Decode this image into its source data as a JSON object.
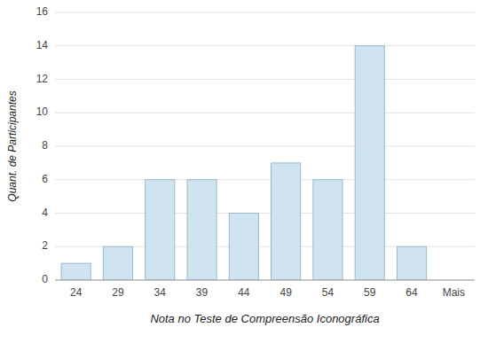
{
  "chart_data": {
    "type": "bar",
    "xlabel": "Nota no Teste de Compreensão Iconográfica",
    "ylabel": "Quant. de Participantes",
    "categories": [
      "24",
      "29",
      "34",
      "39",
      "44",
      "49",
      "54",
      "59",
      "64",
      "Mais"
    ],
    "values": [
      1,
      2,
      6,
      6,
      4,
      7,
      6,
      14,
      2,
      0
    ],
    "color": "#cfe3f0",
    "ylim": [
      0,
      16
    ],
    "yticks": [
      0,
      2,
      4,
      6,
      8,
      10,
      12,
      14,
      16
    ],
    "grid": true
  }
}
